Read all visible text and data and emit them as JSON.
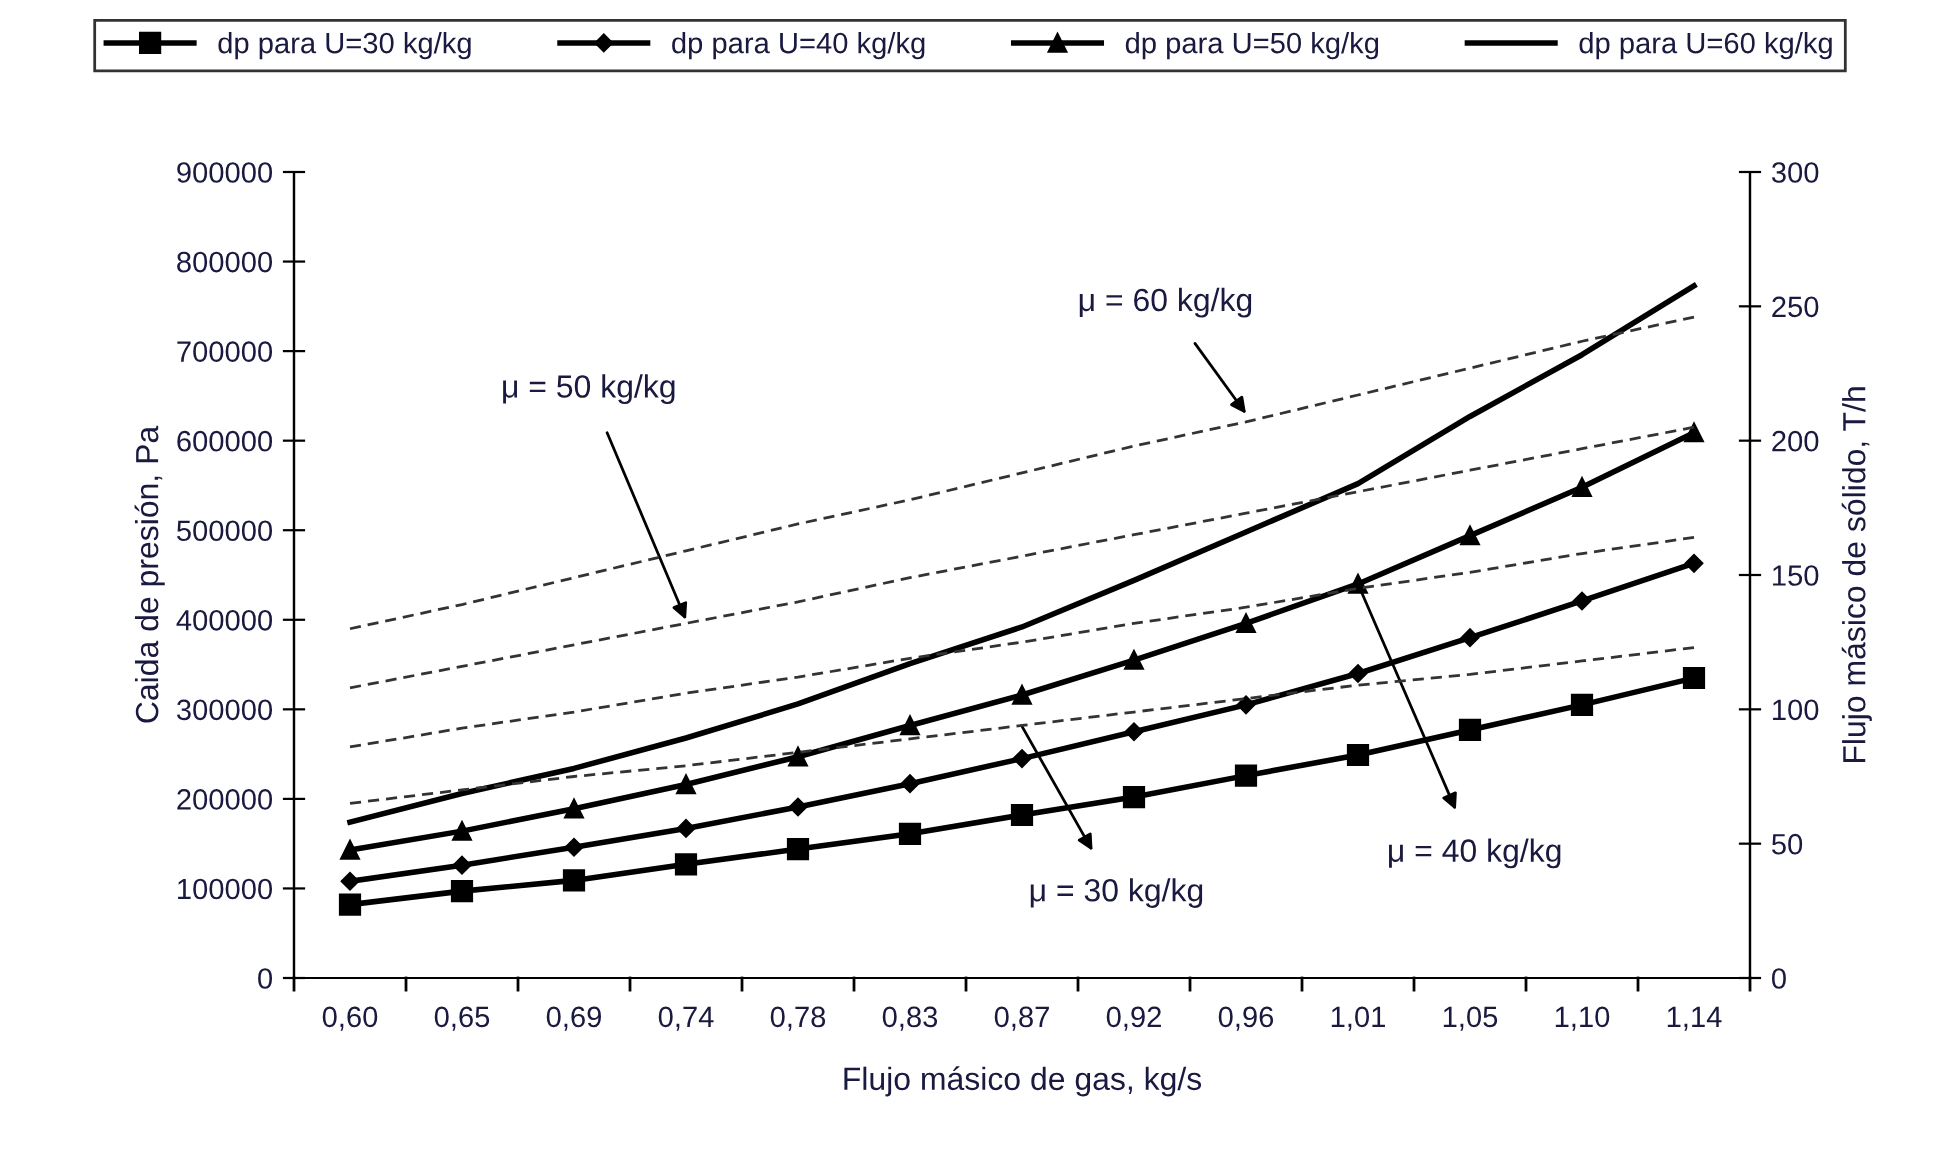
{
  "chart_data": {
    "type": "line",
    "xlabel": "Flujo másico de gas, kg/s",
    "ylabel": "Caida de presión, Pa",
    "y2label": "Flujo másico de sólido, T/h",
    "categories": [
      "0,60",
      "0,65",
      "0,69",
      "0,74",
      "0,78",
      "0,83",
      "0,87",
      "0,92",
      "0,96",
      "1,01",
      "1,05",
      "1,10",
      "1,14"
    ],
    "ylim": [
      0,
      900000
    ],
    "yticks": [
      0,
      100000,
      200000,
      300000,
      400000,
      500000,
      600000,
      700000,
      800000,
      900000
    ],
    "y2lim": [
      0,
      300
    ],
    "y2ticks": [
      0,
      50,
      100,
      150,
      200,
      250,
      300
    ],
    "grid": false,
    "legend": "top",
    "series": [
      {
        "name": "dp para U=30 kg/kg",
        "color": "#000000",
        "marker": "square",
        "line_style": "solid",
        "values": [
          82000,
          97000,
          109000,
          127000,
          144000,
          161000,
          182000,
          202000,
          226000,
          249000,
          277000,
          305000,
          335000
        ]
      },
      {
        "name": "dp para U=40 kg/kg",
        "color": "#000000",
        "marker": "diamond",
        "line_style": "solid",
        "values": [
          108000,
          126000,
          146000,
          167000,
          191000,
          217000,
          245000,
          275000,
          305000,
          340000,
          380000,
          421000,
          463000
        ]
      },
      {
        "name": "dp para U=50 kg/kg",
        "color": "#000000",
        "marker": "triangle",
        "line_style": "solid",
        "values": [
          143000,
          164000,
          189000,
          216000,
          247000,
          282000,
          316000,
          355000,
          396000,
          440000,
          494000,
          548000,
          609000
        ]
      },
      {
        "name": "dp para U=60 kg/kg",
        "color": "#000000",
        "marker": "none",
        "line_style": "solid",
        "values": [
          174000,
          206000,
          234000,
          268000,
          306000,
          351000,
          392000,
          444000,
          498000,
          552000,
          627000,
          696000,
          773000
        ]
      },
      {
        "color": "#333333",
        "marker": "none",
        "line_style": "dashed",
        "axis": "y2",
        "values": [
          65,
          70,
          75,
          79,
          84,
          89,
          94,
          99,
          104,
          109,
          113,
          118,
          123
        ]
      },
      {
        "color": "#333333",
        "marker": "none",
        "line_style": "dashed",
        "axis": "y2",
        "values": [
          86,
          93,
          99,
          106,
          112,
          119,
          125,
          132,
          138,
          145,
          151,
          158,
          164
        ]
      },
      {
        "color": "#333333",
        "marker": "none",
        "line_style": "dashed",
        "axis": "y2",
        "values": [
          108,
          116,
          124,
          132,
          140,
          149,
          157,
          165,
          173,
          181,
          189,
          197,
          205
        ]
      },
      {
        "color": "#333333",
        "marker": "none",
        "line_style": "dashed",
        "axis": "y2",
        "values": [
          130,
          139,
          149,
          159,
          169,
          178,
          188,
          198,
          207,
          217,
          227,
          237,
          246
        ]
      }
    ],
    "annotations": [
      {
        "text": "μ = 50 kg/kg",
        "x": "0,74",
        "y": 400000
      },
      {
        "text": "μ = 60 kg/kg",
        "x": "0,96",
        "y": 630000
      },
      {
        "text": "μ = 30 kg/kg",
        "x": "0,87",
        "y": 281000
      },
      {
        "text": "μ = 40 kg/kg",
        "x": "1,01",
        "y": 440000
      }
    ]
  }
}
